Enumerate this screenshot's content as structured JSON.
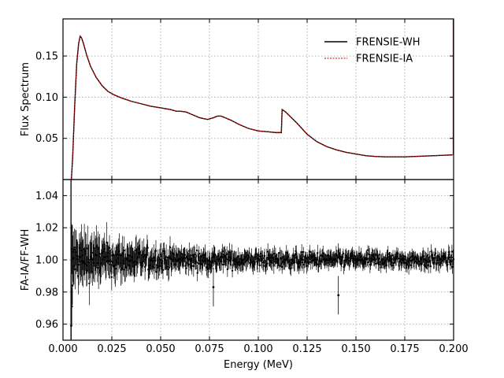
{
  "chart_data": [
    {
      "type": "line",
      "panel": "top",
      "title": "",
      "xlabel": "",
      "ylabel": "Flux Spectrum",
      "xlim": [
        0.0,
        0.2
      ],
      "ylim": [
        0.0,
        0.195
      ],
      "yticks": [
        "0.05",
        "0.10",
        "0.15"
      ],
      "grid": true,
      "legend": "top-right",
      "series": [
        {
          "name": "FRENSIE-WH",
          "color": "#000000",
          "style": "solid",
          "x": [
            0.0043,
            0.005,
            0.006,
            0.007,
            0.008,
            0.0088,
            0.0095,
            0.0105,
            0.012,
            0.014,
            0.017,
            0.02,
            0.023,
            0.026,
            0.03,
            0.035,
            0.04,
            0.045,
            0.05,
            0.055,
            0.058,
            0.06,
            0.063,
            0.066,
            0.07,
            0.074,
            0.077,
            0.079,
            0.081,
            0.083,
            0.086,
            0.09,
            0.095,
            0.1,
            0.105,
            0.109,
            0.1118,
            0.1122,
            0.114,
            0.117,
            0.12,
            0.125,
            0.13,
            0.135,
            0.14,
            0.145,
            0.15,
            0.155,
            0.16,
            0.165,
            0.17,
            0.175,
            0.18,
            0.185,
            0.19,
            0.195,
            0.1995
          ],
          "y": [
            0.0,
            0.03,
            0.09,
            0.14,
            0.165,
            0.174,
            0.172,
            0.165,
            0.152,
            0.138,
            0.124,
            0.114,
            0.107,
            0.103,
            0.099,
            0.095,
            0.092,
            0.089,
            0.087,
            0.085,
            0.083,
            0.083,
            0.082,
            0.079,
            0.075,
            0.073,
            0.075,
            0.077,
            0.077,
            0.075,
            0.072,
            0.067,
            0.062,
            0.059,
            0.058,
            0.057,
            0.057,
            0.085,
            0.082,
            0.075,
            0.068,
            0.055,
            0.046,
            0.04,
            0.036,
            0.033,
            0.031,
            0.029,
            0.028,
            0.0275,
            0.0275,
            0.0275,
            0.028,
            0.0285,
            0.029,
            0.0295,
            0.03
          ]
        },
        {
          "name": "FRENSIE-IA",
          "color": "#cc0000",
          "style": "dotted",
          "x": [
            0.0043,
            0.005,
            0.006,
            0.007,
            0.008,
            0.0088,
            0.0095,
            0.0105,
            0.012,
            0.014,
            0.017,
            0.02,
            0.023,
            0.026,
            0.03,
            0.035,
            0.04,
            0.045,
            0.05,
            0.055,
            0.058,
            0.06,
            0.063,
            0.066,
            0.07,
            0.074,
            0.077,
            0.079,
            0.081,
            0.083,
            0.086,
            0.09,
            0.095,
            0.1,
            0.105,
            0.109,
            0.1118,
            0.1122,
            0.114,
            0.117,
            0.12,
            0.125,
            0.13,
            0.135,
            0.14,
            0.145,
            0.15,
            0.155,
            0.16,
            0.165,
            0.17,
            0.175,
            0.18,
            0.185,
            0.19,
            0.195,
            0.1995
          ],
          "y": [
            0.0,
            0.03,
            0.09,
            0.14,
            0.165,
            0.174,
            0.172,
            0.165,
            0.152,
            0.138,
            0.124,
            0.114,
            0.107,
            0.103,
            0.099,
            0.095,
            0.092,
            0.089,
            0.087,
            0.085,
            0.083,
            0.083,
            0.082,
            0.079,
            0.075,
            0.073,
            0.075,
            0.077,
            0.077,
            0.075,
            0.072,
            0.067,
            0.062,
            0.059,
            0.058,
            0.057,
            0.057,
            0.085,
            0.082,
            0.075,
            0.068,
            0.055,
            0.046,
            0.04,
            0.036,
            0.033,
            0.031,
            0.029,
            0.028,
            0.0275,
            0.0275,
            0.0275,
            0.028,
            0.0285,
            0.029,
            0.0295,
            0.03
          ]
        }
      ]
    },
    {
      "type": "scatter",
      "panel": "bottom",
      "title": "",
      "xlabel": "Energy (MeV)",
      "ylabel": "FA-IA/FF-WH",
      "xlim": [
        0.0,
        0.2
      ],
      "ylim": [
        0.95,
        1.05
      ],
      "xticks": [
        "0.000",
        "0.025",
        "0.050",
        "0.075",
        "0.100",
        "0.125",
        "0.150",
        "0.175",
        "0.200"
      ],
      "yticks": [
        "0.96",
        "0.98",
        "1.00",
        "1.02",
        "1.04"
      ],
      "grid": true,
      "color": "#000000",
      "errorbars": true,
      "x_range": [
        0.0045,
        0.2
      ],
      "point_count": 700,
      "center": 1.0,
      "scatter_near_start": 0.012,
      "scatter_tail": 0.004,
      "errorbar_near_start": 0.014,
      "errorbar_tail": 0.004,
      "low_outliers": [
        {
          "x": 0.0042,
          "y": 0.959
        },
        {
          "x": 0.0045,
          "y": 0.971
        },
        {
          "x": 0.0048,
          "y": 0.984
        },
        {
          "x": 0.141,
          "y": 0.978
        },
        {
          "x": 0.077,
          "y": 0.983
        }
      ]
    }
  ]
}
